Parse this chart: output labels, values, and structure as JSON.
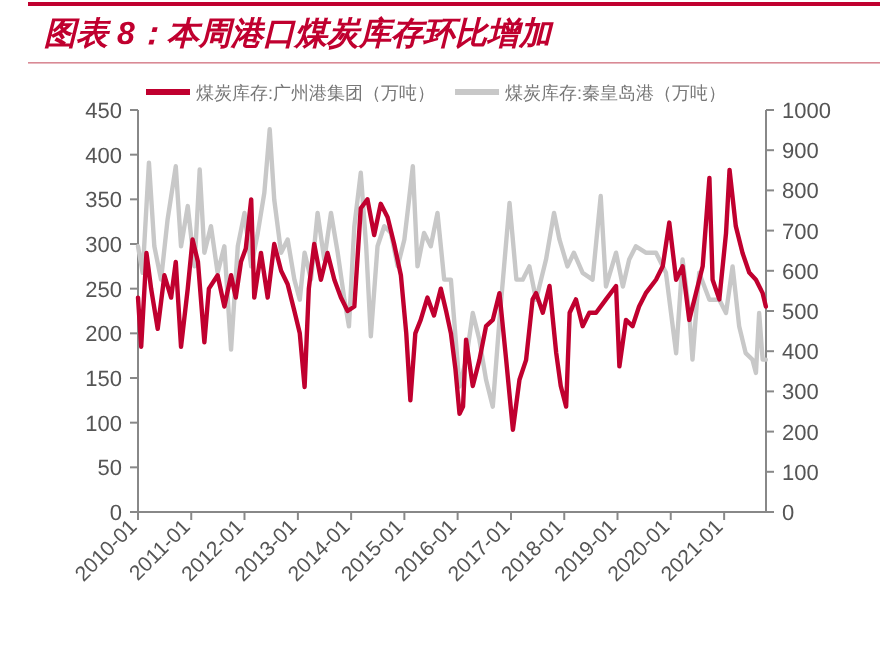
{
  "chart_data": {
    "type": "line",
    "title": "图表 8：本周港口煤炭库存环比增加",
    "xlim": [
      "2010-01-01",
      "2021-10-15"
    ],
    "xticks": [
      "2010-01",
      "2011-01",
      "2012-01",
      "2013-01",
      "2014-01",
      "2015-01",
      "2016-01",
      "2017-01",
      "2018-01",
      "2019-01",
      "2020-01",
      "2021-01"
    ],
    "ylim": [
      0,
      450
    ],
    "yticks": [
      0,
      50,
      100,
      150,
      200,
      250,
      300,
      350,
      400,
      450
    ],
    "y2lim": [
      0,
      1000
    ],
    "y2ticks": [
      0,
      100,
      200,
      300,
      400,
      500,
      600,
      700,
      800,
      900,
      1000
    ],
    "legend": "top",
    "grid": false,
    "series": [
      {
        "name": "煤炭库存:广州港集团（万吨）",
        "color": "#c0002f",
        "axis": "y",
        "x": [
          "2010-01-01",
          "2010-01-23",
          "2010-02-28",
          "2010-04-01",
          "2010-05-16",
          "2010-07-01",
          "2010-08-16",
          "2010-09-17",
          "2010-10-23",
          "2010-12-08",
          "2011-01-10",
          "2011-02-16",
          "2011-04-01",
          "2011-05-02",
          "2011-07-01",
          "2011-08-16",
          "2011-10-01",
          "2011-11-02",
          "2011-12-08",
          "2012-01-10",
          "2012-02-16",
          "2012-03-08",
          "2012-04-23",
          "2012-06-08",
          "2012-07-23",
          "2012-09-08",
          "2012-10-23",
          "2012-12-08",
          "2013-01-14",
          "2013-02-16",
          "2013-03-17",
          "2013-04-23",
          "2013-06-08",
          "2013-07-23",
          "2013-09-08",
          "2013-10-23",
          "2013-12-08",
          "2014-01-23",
          "2014-03-08",
          "2014-04-23",
          "2014-06-08",
          "2014-07-23",
          "2014-09-08",
          "2014-10-23",
          "2014-12-08",
          "2015-01-14",
          "2015-02-11",
          "2015-03-17",
          "2015-04-23",
          "2015-06-08",
          "2015-07-23",
          "2015-09-08",
          "2015-10-14",
          "2015-11-16",
          "2015-12-17",
          "2016-01-14",
          "2016-02-07",
          "2016-02-28",
          "2016-04-14",
          "2016-05-29",
          "2016-07-14",
          "2016-08-29",
          "2016-10-14",
          "2016-11-29",
          "2017-01-14",
          "2017-02-28",
          "2017-04-14",
          "2017-05-29",
          "2017-06-22",
          "2017-08-07",
          "2017-09-22",
          "2017-11-07",
          "2017-12-08",
          "2018-01-14",
          "2018-02-07",
          "2018-03-22",
          "2018-05-07",
          "2018-06-22",
          "2018-08-07",
          "2018-10-14",
          "2018-12-22",
          "2019-01-14",
          "2019-02-28",
          "2019-04-14",
          "2019-05-29",
          "2019-07-14",
          "2019-09-22",
          "2019-11-07",
          "2019-12-22",
          "2020-02-07",
          "2020-03-22",
          "2020-05-07",
          "2020-06-22",
          "2020-08-07",
          "2020-09-22",
          "2020-10-14",
          "2020-11-29",
          "2021-01-14",
          "2021-02-07",
          "2021-03-22",
          "2021-05-07",
          "2021-06-22",
          "2021-08-07",
          "2021-09-22",
          "2021-10-14"
        ],
        "values": [
          240,
          185,
          290,
          250,
          205,
          265,
          240,
          280,
          185,
          250,
          305,
          280,
          190,
          250,
          265,
          230,
          265,
          240,
          280,
          295,
          350,
          240,
          290,
          240,
          300,
          270,
          255,
          225,
          200,
          140,
          250,
          300,
          260,
          290,
          260,
          240,
          225,
          230,
          340,
          350,
          310,
          345,
          330,
          300,
          265,
          200,
          125,
          200,
          215,
          240,
          220,
          250,
          225,
          200,
          160,
          110,
          118,
          193,
          141,
          170,
          208,
          215,
          245,
          170,
          92,
          148,
          170,
          238,
          245,
          223,
          253,
          178,
          141,
          118,
          223,
          238,
          208,
          223,
          223,
          238,
          253,
          163,
          215,
          208,
          230,
          245,
          260,
          275,
          324,
          260,
          275,
          215,
          245,
          275,
          374,
          260,
          238,
          312,
          383,
          320,
          290,
          268,
          260,
          245,
          230
        ]
      },
      {
        "name": "煤炭库存:秦皇岛港（万吨）",
        "color": "#c8c8c8",
        "axis": "y2",
        "x": [
          "2010-01-01",
          "2010-02-02",
          "2010-03-17",
          "2010-04-23",
          "2010-06-08",
          "2010-07-23",
          "2010-09-17",
          "2010-10-23",
          "2010-12-08",
          "2011-01-23",
          "2011-02-28",
          "2011-04-01",
          "2011-05-16",
          "2011-07-01",
          "2011-08-16",
          "2011-10-01",
          "2011-11-16",
          "2012-01-01",
          "2012-02-16",
          "2012-04-01",
          "2012-05-16",
          "2012-06-22",
          "2012-07-23",
          "2012-09-08",
          "2012-10-23",
          "2012-12-08",
          "2013-01-14",
          "2013-02-16",
          "2013-04-01",
          "2013-05-16",
          "2013-07-01",
          "2013-08-16",
          "2013-10-01",
          "2013-11-16",
          "2013-12-17",
          "2014-01-23",
          "2014-03-08",
          "2014-04-14",
          "2014-05-16",
          "2014-07-01",
          "2014-08-16",
          "2014-10-01",
          "2014-11-16",
          "2015-01-01",
          "2015-02-02",
          "2015-02-28",
          "2015-04-01",
          "2015-05-16",
          "2015-07-01",
          "2015-08-16",
          "2015-10-01",
          "2015-11-16",
          "2016-01-14",
          "2016-02-28",
          "2016-04-14",
          "2016-05-29",
          "2016-07-14",
          "2016-08-29",
          "2016-10-14",
          "2016-12-22",
          "2017-02-07",
          "2017-03-22",
          "2017-05-07",
          "2017-06-22",
          "2017-08-29",
          "2017-10-23",
          "2017-11-29",
          "2018-01-23",
          "2018-03-08",
          "2018-05-07",
          "2018-07-14",
          "2018-09-08",
          "2018-10-14",
          "2018-12-22",
          "2019-02-07",
          "2019-03-22",
          "2019-05-07",
          "2019-07-14",
          "2019-09-22",
          "2019-11-29",
          "2020-02-07",
          "2020-03-22",
          "2020-05-07",
          "2020-05-29",
          "2020-07-14",
          "2020-09-22",
          "2020-11-29",
          "2021-01-14",
          "2021-02-28",
          "2021-04-14",
          "2021-05-29",
          "2021-07-14",
          "2021-08-07",
          "2021-08-29",
          "2021-09-22",
          "2021-10-14"
        ],
        "values": [
          661,
          595,
          869,
          661,
          578,
          728,
          860,
          661,
          761,
          611,
          852,
          645,
          711,
          595,
          661,
          404,
          661,
          744,
          611,
          694,
          794,
          952,
          777,
          645,
          678,
          578,
          528,
          645,
          578,
          744,
          628,
          744,
          645,
          528,
          462,
          711,
          844,
          661,
          437,
          661,
          711,
          694,
          611,
          678,
          777,
          860,
          611,
          694,
          661,
          744,
          578,
          578,
          312,
          379,
          495,
          429,
          329,
          262,
          478,
          769,
          578,
          578,
          611,
          528,
          628,
          744,
          678,
          611,
          645,
          595,
          578,
          786,
          561,
          645,
          561,
          628,
          661,
          645,
          645,
          595,
          395,
          628,
          495,
          379,
          595,
          528,
          528,
          495,
          611,
          462,
          395,
          379,
          346,
          495,
          379,
          379
        ]
      }
    ]
  }
}
